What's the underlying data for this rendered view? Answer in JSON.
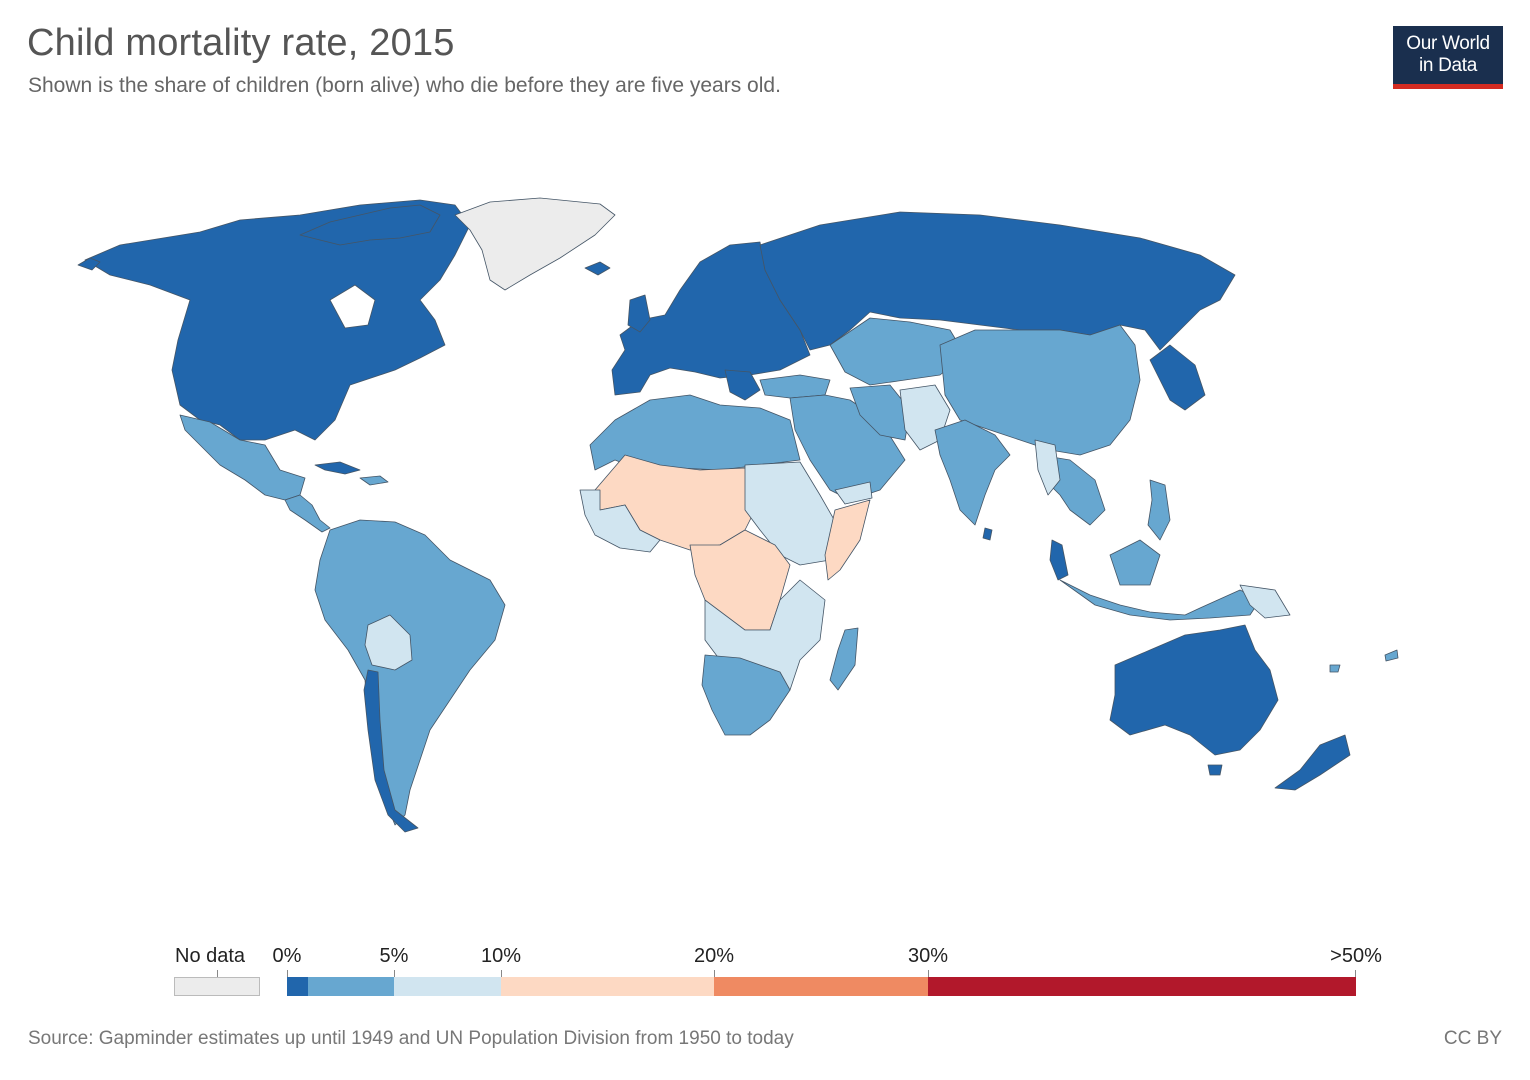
{
  "header": {
    "title": "Child mortality rate, 2015",
    "subtitle": "Shown is the share of children (born alive) who die before they are five years old."
  },
  "logo": {
    "line1": "Our World",
    "line2": "in Data",
    "bg_color": "#1a2f4e",
    "accent_color": "#d42b21"
  },
  "legend": {
    "no_data_label": "No data",
    "no_data_color": "#ececec",
    "bins": [
      {
        "from": "0%",
        "to": "",
        "color": "#2166ac"
      },
      {
        "from": "",
        "to": "5%",
        "color": "#67a7d0"
      },
      {
        "from": "5%",
        "to": "10%",
        "color": "#d1e5f0"
      },
      {
        "from": "10%",
        "to": "20%",
        "color": "#fdd9c3"
      },
      {
        "from": "20%",
        "to": "30%",
        "color": "#ef8a62"
      },
      {
        "from": "30%",
        "to": ">50%",
        "color": "#b2182b"
      }
    ],
    "tick_labels": [
      "0%",
      "5%",
      "10%",
      "20%",
      "30%",
      ">50%"
    ]
  },
  "map": {
    "classes": {
      "very_low": "#2166ac",
      "low": "#67a7d0",
      "medium": "#d1e5f0",
      "high": "#fdd9c3",
      "no_data": "#ececec"
    }
  },
  "footer": {
    "source": "Source: Gapminder estimates up until 1949 and UN Population Division from 1950 to today",
    "license": "CC BY"
  }
}
